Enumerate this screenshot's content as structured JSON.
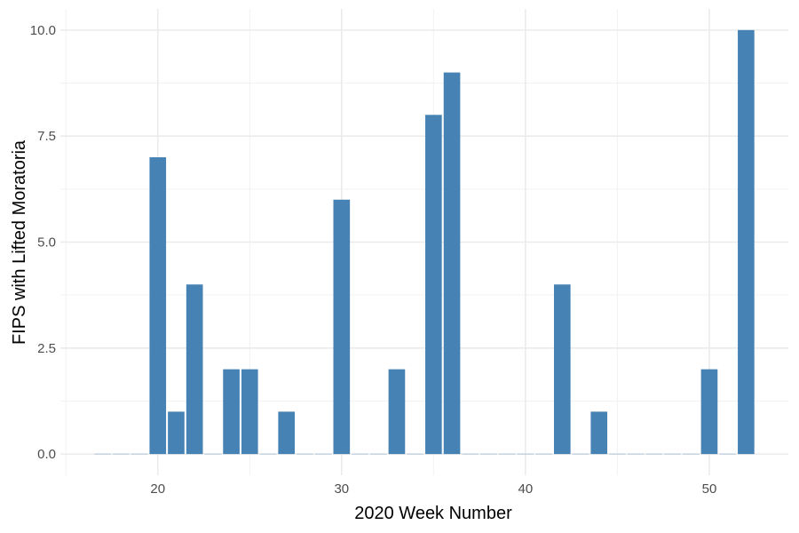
{
  "chart_data": {
    "type": "bar",
    "title": "",
    "xlabel": "2020 Week Number",
    "ylabel": "FIPS with Lifted Moratoria",
    "xlim": [
      14.7,
      54.3
    ],
    "ylim": [
      -0.5,
      10.5
    ],
    "x_ticks": [
      20,
      30,
      40,
      50
    ],
    "x_tick_labels": [
      "20",
      "30",
      "40",
      "50"
    ],
    "y_ticks": [
      0,
      2.5,
      5,
      7.5,
      10
    ],
    "y_tick_labels": [
      "0.0",
      "2.5",
      "5.0",
      "7.5",
      "10.0"
    ],
    "grid": true,
    "legend": "none",
    "bar_color": "#4682B4",
    "x": [
      17,
      18,
      19,
      20,
      21,
      22,
      23,
      24,
      25,
      26,
      27,
      28,
      29,
      30,
      31,
      32,
      33,
      34,
      35,
      36,
      37,
      38,
      39,
      40,
      41,
      42,
      43,
      44,
      45,
      46,
      47,
      48,
      49,
      50,
      51,
      52
    ],
    "values": [
      0,
      0,
      0,
      7,
      1,
      4,
      0,
      2,
      2,
      0,
      1,
      0,
      0,
      6,
      0,
      0,
      2,
      0,
      8,
      9,
      0,
      0,
      0,
      0,
      0,
      4,
      0,
      1,
      0,
      0,
      0,
      0,
      0,
      2,
      0,
      10
    ]
  }
}
